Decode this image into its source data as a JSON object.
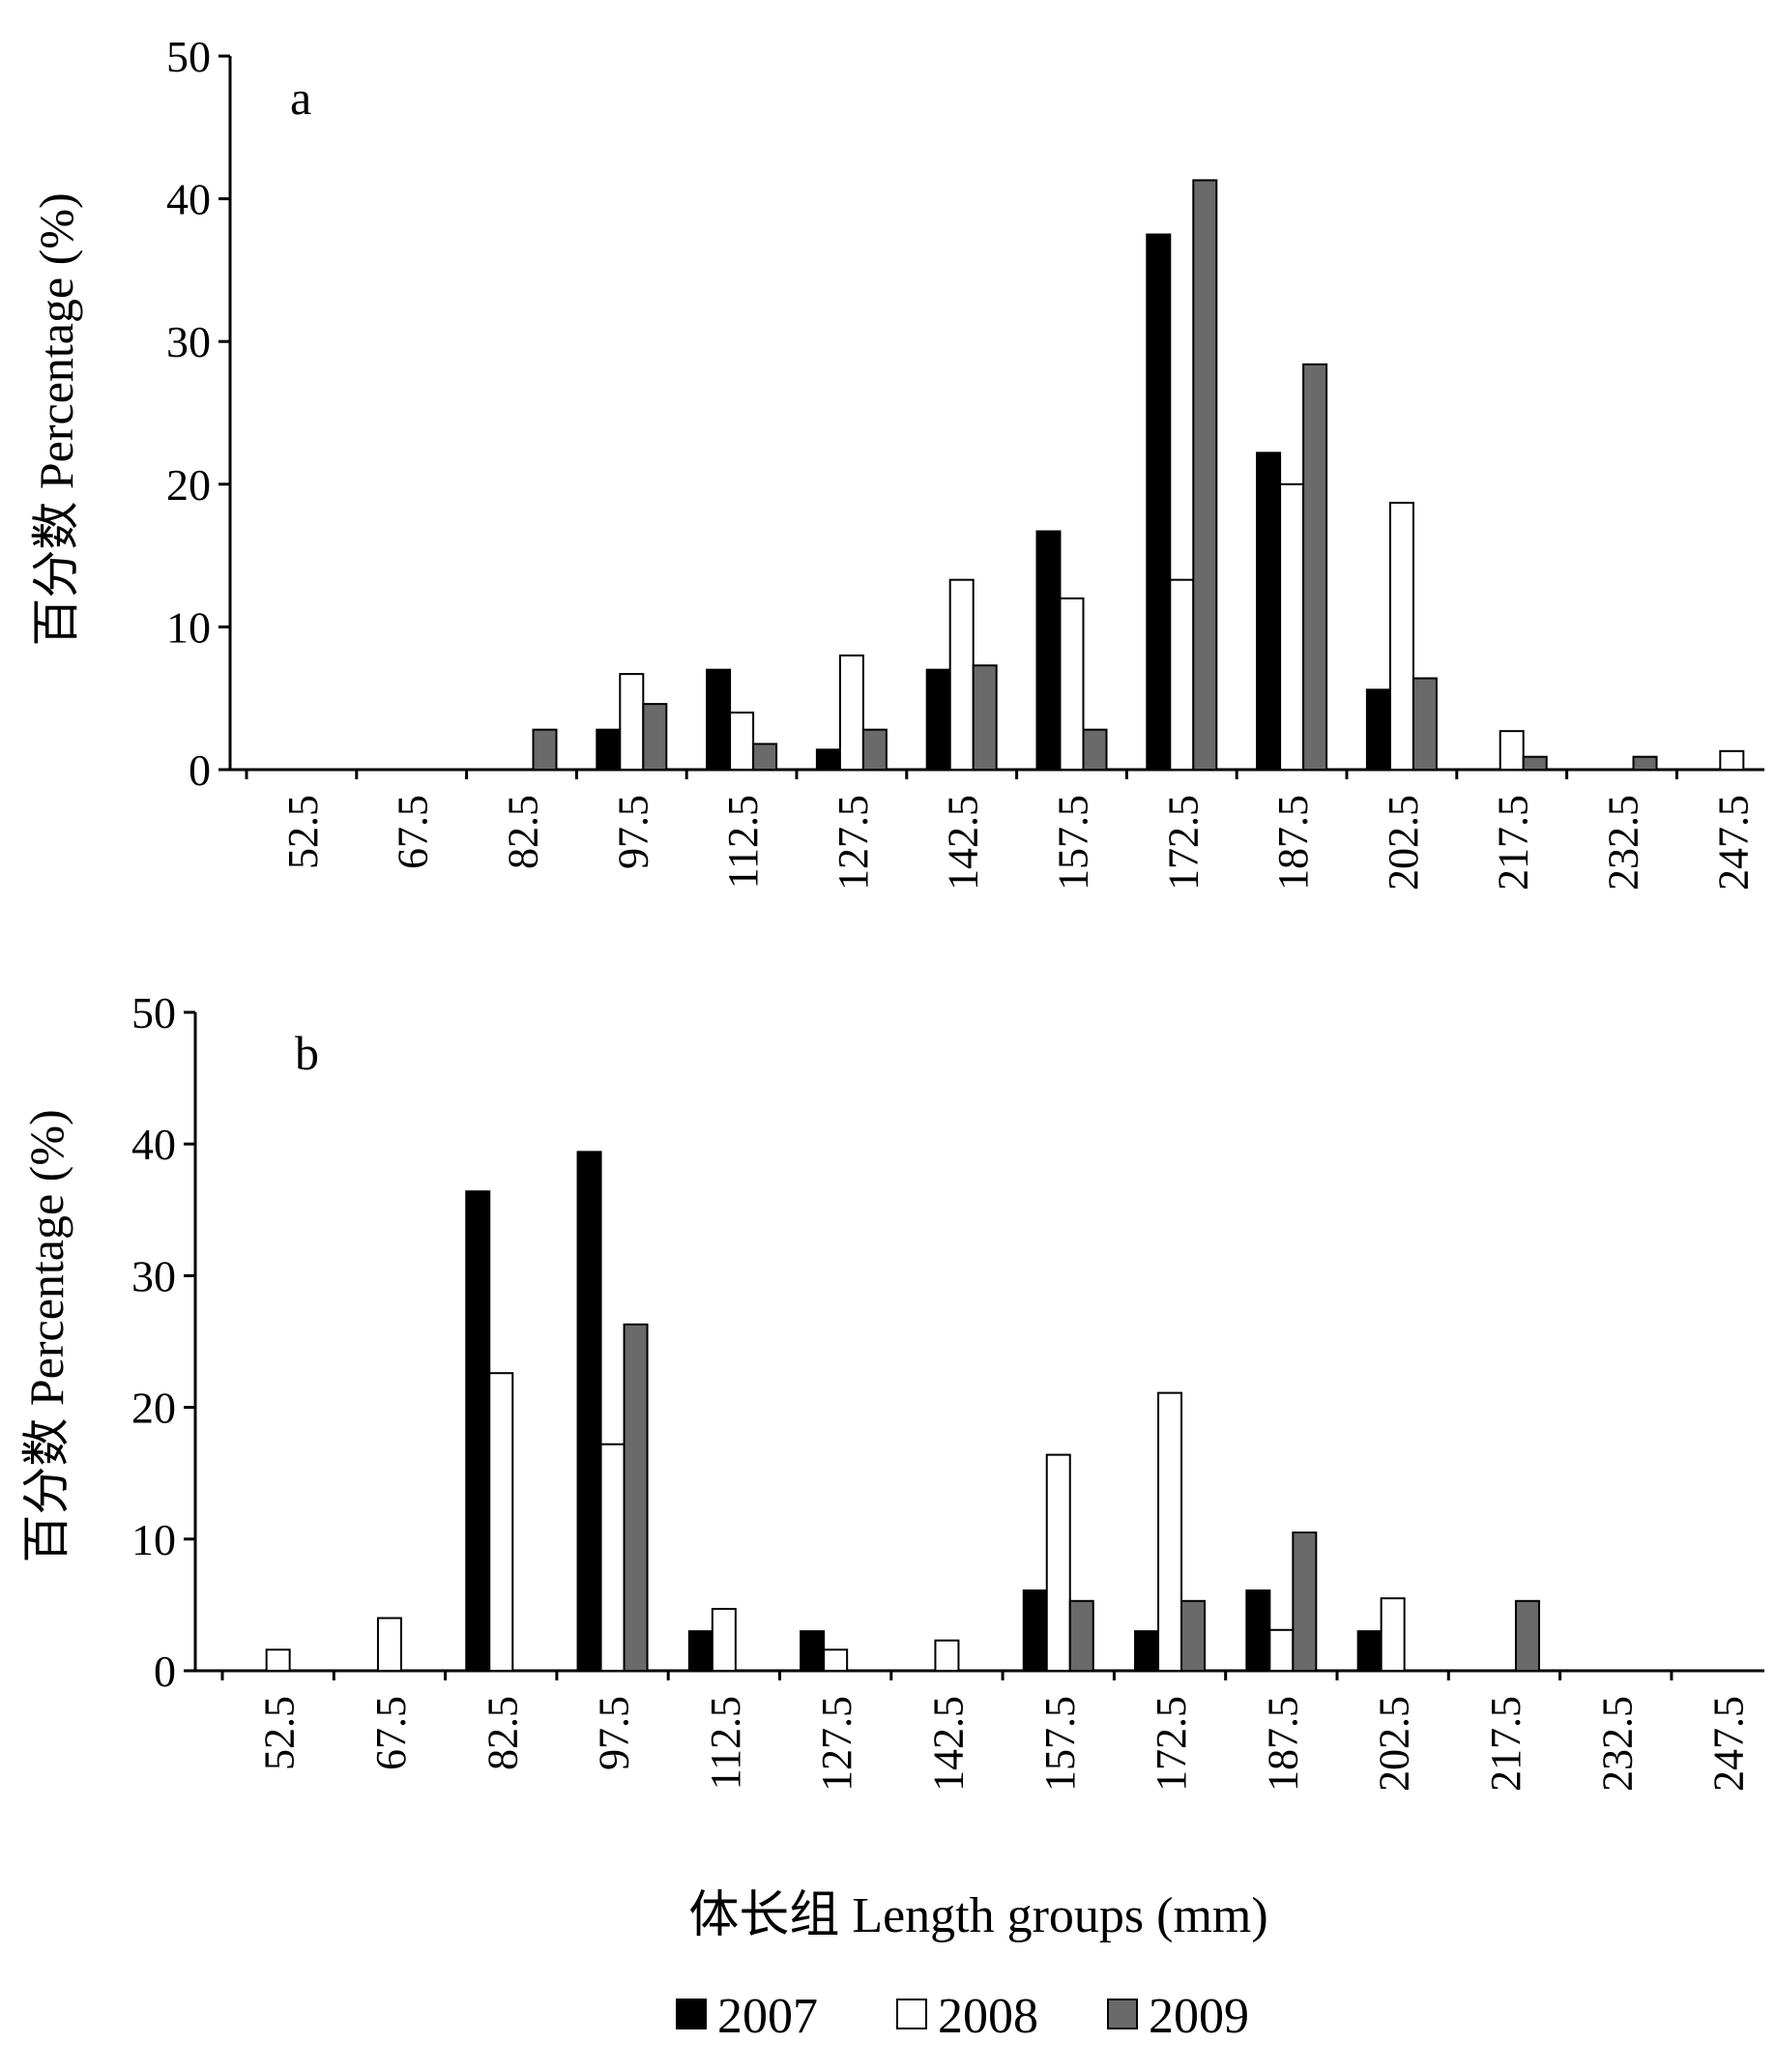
{
  "figure": {
    "xlabel": "体长组 Length groups (mm)",
    "legend": [
      {
        "name": "2007",
        "color": "#000000"
      },
      {
        "name": "2008",
        "color": "#ffffff"
      },
      {
        "name": "2009",
        "color": "#6a6a6a"
      }
    ]
  },
  "chart_data": [
    {
      "type": "bar",
      "panel_label": "a",
      "ylabel": "百分数 Percentage (%)",
      "xlabel": "",
      "ylim": [
        0,
        50
      ],
      "yticks": [
        0,
        10,
        20,
        30,
        40,
        50
      ],
      "categories": [
        "52.5",
        "67.5",
        "82.5",
        "97.5",
        "112.5",
        "127.5",
        "142.5",
        "157.5",
        "172.5",
        "187.5",
        "202.5",
        "217.5",
        "232.5",
        "247.5"
      ],
      "series": [
        {
          "name": "2007",
          "values": [
            0,
            0,
            0,
            2.8,
            7.0,
            1.4,
            7.0,
            16.7,
            37.5,
            22.2,
            5.6,
            0,
            0,
            0
          ]
        },
        {
          "name": "2008",
          "values": [
            0,
            0,
            0,
            6.7,
            4.0,
            8.0,
            13.3,
            12.0,
            13.3,
            20.0,
            18.7,
            2.7,
            0,
            1.3
          ]
        },
        {
          "name": "2009",
          "values": [
            0,
            0,
            2.8,
            4.6,
            1.8,
            2.8,
            7.3,
            2.8,
            41.3,
            28.4,
            6.4,
            0.9,
            0.9,
            0
          ]
        }
      ],
      "legend": "bottom-center",
      "grid": false
    },
    {
      "type": "bar",
      "panel_label": "b",
      "ylabel": "百分数 Percentage (%)",
      "xlabel": "体长组 Length groups (mm)",
      "ylim": [
        0,
        50
      ],
      "yticks": [
        0,
        10,
        20,
        30,
        40,
        50
      ],
      "categories": [
        "52.5",
        "67.5",
        "82.5",
        "97.5",
        "112.5",
        "127.5",
        "142.5",
        "157.5",
        "172.5",
        "187.5",
        "202.5",
        "217.5",
        "232.5",
        "247.5"
      ],
      "series": [
        {
          "name": "2007",
          "values": [
            0,
            0,
            36.4,
            39.4,
            3.0,
            3.0,
            0,
            6.1,
            3.0,
            6.1,
            3.0,
            0,
            0,
            0
          ]
        },
        {
          "name": "2008",
          "values": [
            1.6,
            4.0,
            22.6,
            17.2,
            4.7,
            1.6,
            2.3,
            16.4,
            21.1,
            3.1,
            5.5,
            0,
            0,
            0
          ]
        },
        {
          "name": "2009",
          "values": [
            0,
            0,
            0,
            26.3,
            0,
            0,
            0,
            5.3,
            5.3,
            10.5,
            0,
            5.3,
            0,
            0
          ]
        }
      ],
      "legend": "bottom-center",
      "grid": false
    }
  ]
}
